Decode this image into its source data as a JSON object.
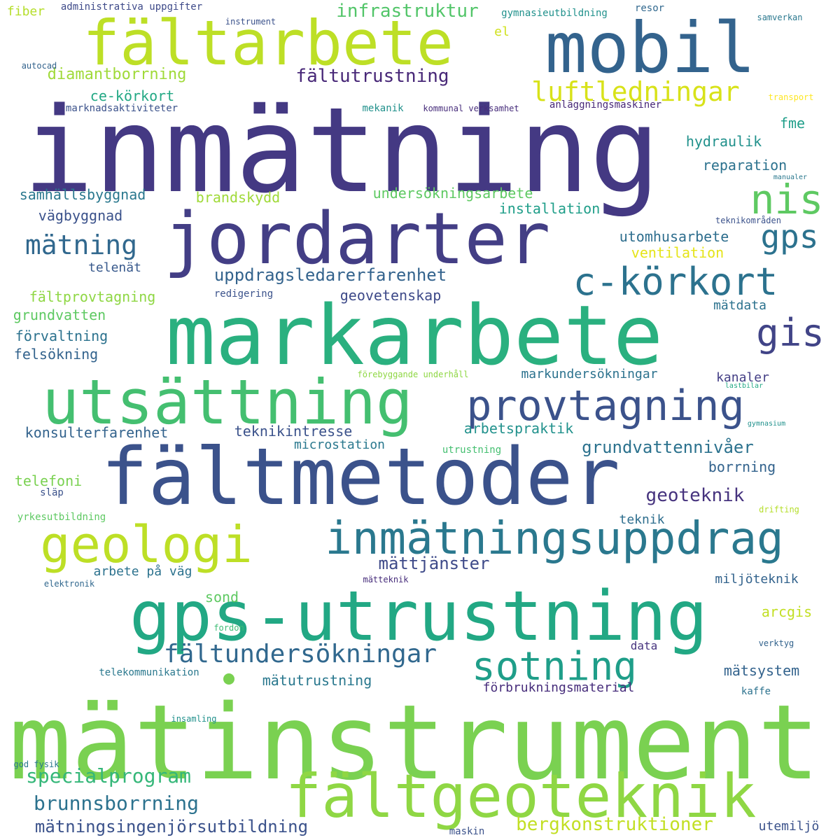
{
  "palette": {
    "dark_purple": "#443983",
    "deep_purple": "#472d7b",
    "indigo": "#3b528b",
    "slate_blue": "#33638d",
    "teal_blue": "#2c728e",
    "teal": "#21918c",
    "sea_green": "#1fa187",
    "green": "#3dbc74",
    "light_green": "#75d054",
    "lime": "#a0da39",
    "yellow_green": "#bddf26",
    "yellow": "#d0e11c",
    "bright_yellow": "#e5e419",
    "dot": "#7ad151"
  },
  "words": [
    {
      "text": "inmätning",
      "color": "#443983"
    },
    {
      "text": "mätinstrument",
      "color": "#7ad151"
    },
    {
      "text": "markarbete",
      "color": "#2ab07f"
    },
    {
      "text": "fältmetoder",
      "color": "#3b528b"
    },
    {
      "text": "jordarter",
      "color": "#433e85"
    },
    {
      "text": "gps-utrustning",
      "color": "#22a884"
    },
    {
      "text": "mobil",
      "color": "#33638d"
    },
    {
      "text": "fältarbete",
      "color": "#bddf26"
    },
    {
      "text": "utsättning",
      "color": "#44bf70"
    },
    {
      "text": "fältgeoteknik",
      "color": "#8fd744"
    },
    {
      "text": "inmätningsuppdrag",
      "color": "#2a788e"
    },
    {
      "text": "geologi",
      "color": "#bddf26"
    },
    {
      "text": "provtagning",
      "color": "#3b528b"
    },
    {
      "text": "c-körkort",
      "color": "#2c728e"
    },
    {
      "text": "sotning",
      "color": "#1f9e89"
    },
    {
      "text": "nis",
      "color": "#5ec962"
    },
    {
      "text": "gis",
      "color": "#414487"
    },
    {
      "text": "gps",
      "color": "#2c728e"
    },
    {
      "text": "fältundersökningar",
      "color": "#31688e"
    },
    {
      "text": "luftledningar",
      "color": "#d8e219"
    },
    {
      "text": "mätning",
      "color": "#31688e"
    },
    {
      "text": "infrastruktur",
      "color": "#52c569"
    },
    {
      "text": "fältutrustning",
      "color": "#482878"
    },
    {
      "text": "uppdragsledarerfarenhet",
      "color": "#33638d"
    },
    {
      "text": "grundvattennivåer",
      "color": "#2c728e"
    },
    {
      "text": "specialprogram",
      "color": "#35b779"
    },
    {
      "text": "brunnsborrning",
      "color": "#2c728e"
    },
    {
      "text": "bergkonstruktioner",
      "color": "#c2df23"
    },
    {
      "text": "mätningsingenjörsutbildning",
      "color": "#3b528b"
    },
    {
      "text": "geoteknik",
      "color": "#46337e"
    },
    {
      "text": "mättjänster",
      "color": "#3e4a89"
    },
    {
      "text": "diamantborrning",
      "color": "#a0da39"
    },
    {
      "text": "ce-körkort",
      "color": "#22a884"
    },
    {
      "text": "samhällsbyggnad",
      "color": "#2a788e"
    },
    {
      "text": "brandskydd",
      "color": "#a0da39"
    },
    {
      "text": "undersökningsarbete",
      "color": "#5ec962"
    },
    {
      "text": "installation",
      "color": "#1f9e89"
    },
    {
      "text": "utomhusarbete",
      "color": "#2e6e8e"
    },
    {
      "text": "ventilation",
      "color": "#e5e419"
    },
    {
      "text": "vägbyggnad",
      "color": "#3b528b"
    },
    {
      "text": "telenät",
      "color": "#38598c"
    },
    {
      "text": "fältprovtagning",
      "color": "#8fd744"
    },
    {
      "text": "grundvatten",
      "color": "#5ec962"
    },
    {
      "text": "förvaltning",
      "color": "#2c728e"
    },
    {
      "text": "felsökning",
      "color": "#33638d"
    },
    {
      "text": "geovetenskap",
      "color": "#3e4a89"
    },
    {
      "text": "mätdata",
      "color": "#2c728e"
    },
    {
      "text": "markundersökningar",
      "color": "#2c728e"
    },
    {
      "text": "kanaler",
      "color": "#433e85"
    },
    {
      "text": "konsulterfarenhet",
      "color": "#33638d"
    },
    {
      "text": "teknikintresse",
      "color": "#3b528b"
    },
    {
      "text": "arbetspraktik",
      "color": "#21918c"
    },
    {
      "text": "microstation",
      "color": "#2a788e"
    },
    {
      "text": "borrning",
      "color": "#33638d"
    },
    {
      "text": "telefoni",
      "color": "#7ad151"
    },
    {
      "text": "teknik",
      "color": "#2e6e8e"
    },
    {
      "text": "arbete på väg",
      "color": "#2c728e"
    },
    {
      "text": "miljöteknik",
      "color": "#33638d"
    },
    {
      "text": "sond",
      "color": "#5ec962"
    },
    {
      "text": "arcgis",
      "color": "#c2df23"
    },
    {
      "text": "mätutrustning",
      "color": "#2a788e"
    },
    {
      "text": "mätsystem",
      "color": "#33638d"
    },
    {
      "text": "förbrukningsmaterial",
      "color": "#472d7b"
    },
    {
      "text": "utemiljö",
      "color": "#3b528b"
    },
    {
      "text": "hydraulik",
      "color": "#21918c"
    },
    {
      "text": "reparation",
      "color": "#2c728e"
    },
    {
      "text": "fme",
      "color": "#1f9e89"
    },
    {
      "text": "el",
      "color": "#d0e11c"
    },
    {
      "text": "fiber",
      "color": "#b5de2b"
    },
    {
      "text": "administrativa uppgifter",
      "color": "#3e4a89"
    },
    {
      "text": "instrument",
      "color": "#3b528b"
    },
    {
      "text": "gymnasieutbildning",
      "color": "#21918c"
    },
    {
      "text": "resor",
      "color": "#31688e"
    },
    {
      "text": "samverkan",
      "color": "#2a788e"
    },
    {
      "text": "autocad",
      "color": "#33638d"
    },
    {
      "text": "transport",
      "color": "#fde725"
    },
    {
      "text": "marknadsaktiviteter",
      "color": "#3b528b"
    },
    {
      "text": "mekanik",
      "color": "#21918c"
    },
    {
      "text": "kommunal verksamhet",
      "color": "#472d7b"
    },
    {
      "text": "anläggningsmaskiner",
      "color": "#482878"
    },
    {
      "text": "manualer",
      "color": "#2a788e"
    },
    {
      "text": "teknikområden",
      "color": "#3b528b"
    },
    {
      "text": "redigering",
      "color": "#3b528b"
    },
    {
      "text": "förebyggande underhåll",
      "color": "#8fd744"
    },
    {
      "text": "lastbilar",
      "color": "#22a884"
    },
    {
      "text": "gymnasium",
      "color": "#21918c"
    },
    {
      "text": "utrustning",
      "color": "#44bf70"
    },
    {
      "text": "släp",
      "color": "#3b528b"
    },
    {
      "text": "yrkesutbildning",
      "color": "#5ec962"
    },
    {
      "text": "drifting",
      "color": "#b5de2b"
    },
    {
      "text": "elektronik",
      "color": "#31688e"
    },
    {
      "text": "mätteknik",
      "color": "#472d7b"
    },
    {
      "text": "fordon",
      "color": "#3dbc74"
    },
    {
      "text": "data",
      "color": "#46337e"
    },
    {
      "text": "verktyg",
      "color": "#33638d"
    },
    {
      "text": "telekommunikation",
      "color": "#2a788e"
    },
    {
      "text": "kaffe",
      "color": "#2c728e"
    },
    {
      "text": "insamling",
      "color": "#21918c"
    },
    {
      "text": "god fysik",
      "color": "#2a788e"
    },
    {
      "text": "maskin",
      "color": "#3b528b"
    }
  ]
}
